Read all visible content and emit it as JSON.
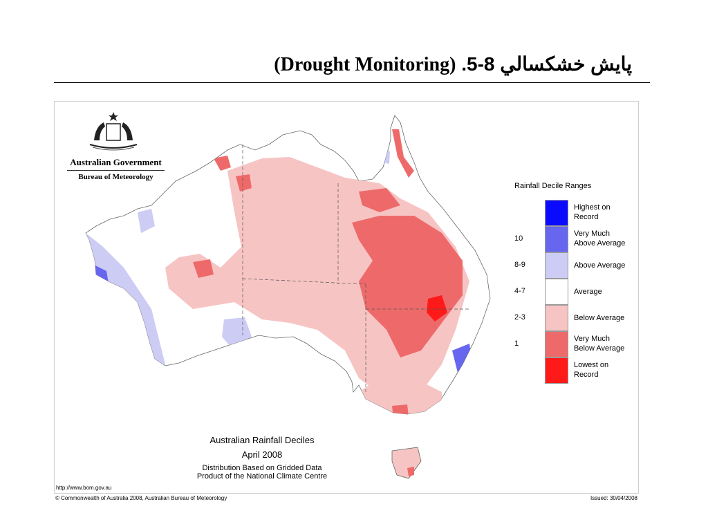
{
  "slide": {
    "title_rtl": ".5-8 پايش خشكسالي",
    "title_latin": "(Drought Monitoring)"
  },
  "agency": {
    "line1": "Australian Government",
    "line2": "Bureau of Meteorology"
  },
  "legend": {
    "title": "Rainfall Decile Ranges",
    "items": [
      {
        "range": "",
        "label_lines": [
          "Highest on",
          "Record"
        ],
        "color": "#0a0aff"
      },
      {
        "range": "10",
        "label_lines": [
          "Very Much",
          "Above Average"
        ],
        "color": "#6666ee"
      },
      {
        "range": "8-9",
        "label_lines": [
          "Above Average",
          ""
        ],
        "color": "#ccccf5"
      },
      {
        "range": "4-7",
        "label_lines": [
          "Average",
          ""
        ],
        "color": "#ffffff"
      },
      {
        "range": "2-3",
        "label_lines": [
          "Below Average",
          ""
        ],
        "color": "#f7c4c4"
      },
      {
        "range": "1",
        "label_lines": [
          "Very Much",
          "Below Average"
        ],
        "color": "#ee6a6a"
      },
      {
        "range": "",
        "label_lines": [
          "Lowest on",
          "Record"
        ],
        "color": "#ff1a1a"
      }
    ]
  },
  "map": {
    "title": "Australian Rainfall Deciles",
    "date": "April 2008",
    "line3": "Distribution Based on Gridded Data",
    "line4": "Product of the National Climate Centre",
    "url": "http://www.bom.gov.au"
  },
  "footer": {
    "left": "© Commonwealth of Australia 2008, Australian Bureau of Meteorology",
    "right": "Issued: 30/04/2008"
  }
}
